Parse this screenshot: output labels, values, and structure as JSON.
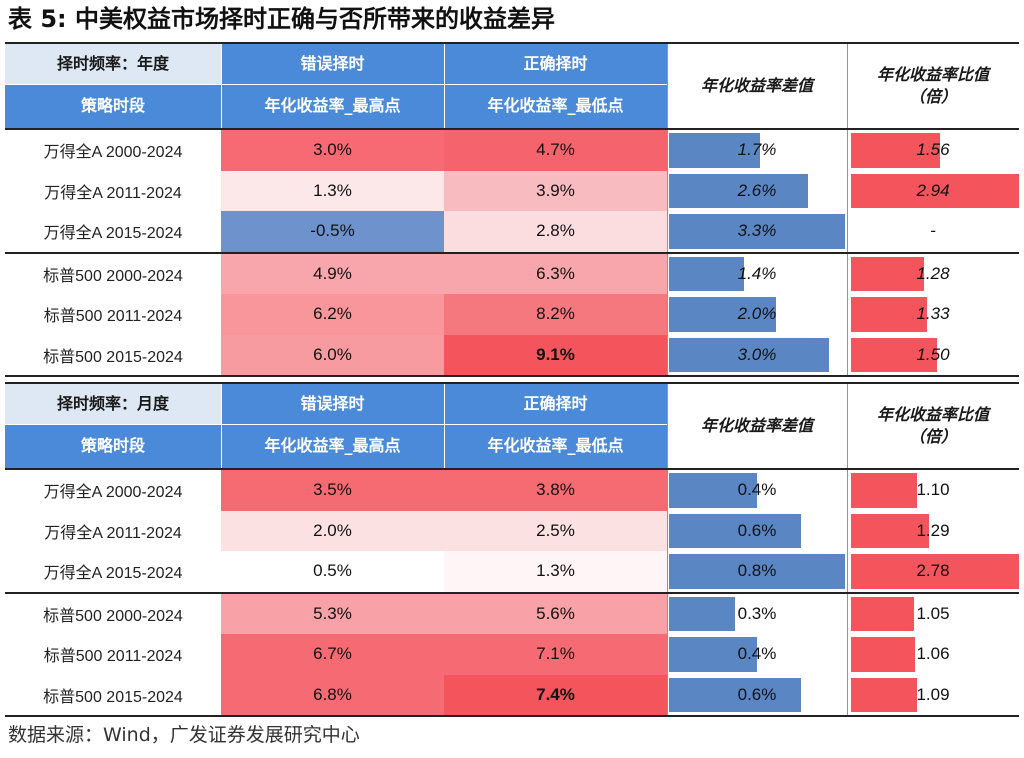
{
  "title": "表 5:   中美权益市场择时正确与否所带来的收益差异",
  "source": "数据来源：Wind，广发证券发展研究中心",
  "colors": {
    "header_light": "#dde8f4",
    "header_blue": "#4a8ad8",
    "bar_red": "#f4545c",
    "bar_blue": "#5b86c4",
    "neg_blue": "#6d92cc"
  },
  "sections": [
    {
      "freq_label": "择时频率：年度",
      "period_label": "策略时段",
      "wrong_label": "错误择时",
      "wrong_sub": "年化收益率_最高点",
      "right_label": "正确择时",
      "right_sub": "年化收益率_最低点",
      "diff_label": "年化收益率差值",
      "ratio_label": "年化收益率比值（倍）",
      "max_diff": 3.3,
      "max_ratio": 2.94,
      "rows": [
        {
          "period": "万得全A 2000-2024",
          "wrong": "3.0%",
          "right": "4.7%",
          "diff": "1.7%",
          "diff_v": 1.7,
          "ratio": "1.56",
          "ratio_v": 1.56,
          "wrong_bg": "#f76a73",
          "right_bg": "#f5646c",
          "right_bold": false
        },
        {
          "period": "万得全A 2011-2024",
          "wrong": "1.3%",
          "right": "3.9%",
          "diff": "2.6%",
          "diff_v": 2.6,
          "ratio": "2.94",
          "ratio_v": 2.94,
          "wrong_bg": "#fde8e9",
          "right_bg": "#f8bcc0",
          "right_bold": false
        },
        {
          "period": "万得全A 2015-2024",
          "wrong": "-0.5%",
          "right": "2.8%",
          "diff": "3.3%",
          "diff_v": 3.3,
          "ratio": "-",
          "ratio_v": 0,
          "wrong_bg": "#6d92cc",
          "right_bg": "#fbdde0",
          "right_bold": false
        },
        {
          "period": "标普500 2000-2024",
          "wrong": "4.9%",
          "right": "6.3%",
          "diff": "1.4%",
          "diff_v": 1.4,
          "ratio": "1.28",
          "ratio_v": 1.28,
          "wrong_bg": "#f8a6ab",
          "right_bg": "#f8a6ab",
          "right_bold": false
        },
        {
          "period": "标普500 2011-2024",
          "wrong": "6.2%",
          "right": "8.2%",
          "diff": "2.0%",
          "diff_v": 2.0,
          "ratio": "1.33",
          "ratio_v": 1.33,
          "wrong_bg": "#f8969c",
          "right_bg": "#f6787f",
          "right_bold": false
        },
        {
          "period": "标普500 2015-2024",
          "wrong": "6.0%",
          "right": "9.1%",
          "diff": "3.0%",
          "diff_v": 3.0,
          "ratio": "1.50",
          "ratio_v": 1.5,
          "wrong_bg": "#f89ba0",
          "right_bg": "#f4545c",
          "right_bold": true
        }
      ]
    },
    {
      "freq_label": "择时频率：月度",
      "period_label": "策略时段",
      "wrong_label": "错误择时",
      "wrong_sub": "年化收益率_最高点",
      "right_label": "正确择时",
      "right_sub": "年化收益率_最低点",
      "diff_label": "年化收益率差值",
      "ratio_label": "年化收益率比值（倍）",
      "max_diff": 0.8,
      "max_ratio": 2.78,
      "rows": [
        {
          "period": "万得全A 2000-2024",
          "wrong": "3.5%",
          "right": "3.8%",
          "diff": "0.4%",
          "diff_v": 0.4,
          "ratio": "1.10",
          "ratio_v": 1.1,
          "wrong_bg": "#f66a72",
          "right_bg": "#f66a72",
          "right_bold": false
        },
        {
          "period": "万得全A 2011-2024",
          "wrong": "2.0%",
          "right": "2.5%",
          "diff": "0.6%",
          "diff_v": 0.6,
          "ratio": "1.29",
          "ratio_v": 1.29,
          "wrong_bg": "#fce1e3",
          "right_bg": "#fce1e3",
          "right_bold": false
        },
        {
          "period": "万得全A 2015-2024",
          "wrong": "0.5%",
          "right": "1.3%",
          "diff": "0.8%",
          "diff_v": 0.8,
          "ratio": "2.78",
          "ratio_v": 2.78,
          "wrong_bg": "#ffffff",
          "right_bg": "#fff5f6",
          "right_bold": false
        },
        {
          "period": "标普500 2000-2024",
          "wrong": "5.3%",
          "right": "5.6%",
          "diff": "0.3%",
          "diff_v": 0.3,
          "ratio": "1.05",
          "ratio_v": 1.05,
          "wrong_bg": "#f8a1a6",
          "right_bg": "#f8a1a6",
          "right_bold": false
        },
        {
          "period": "标普500 2011-2024",
          "wrong": "6.7%",
          "right": "7.1%",
          "diff": "0.4%",
          "diff_v": 0.4,
          "ratio": "1.06",
          "ratio_v": 1.06,
          "wrong_bg": "#f66b73",
          "right_bg": "#f66b73",
          "right_bold": false
        },
        {
          "period": "标普500 2015-2024",
          "wrong": "6.8%",
          "right": "7.4%",
          "diff": "0.6%",
          "diff_v": 0.6,
          "ratio": "1.09",
          "ratio_v": 1.09,
          "wrong_bg": "#f66b73",
          "right_bg": "#f4545c",
          "right_bold": true
        }
      ]
    }
  ]
}
